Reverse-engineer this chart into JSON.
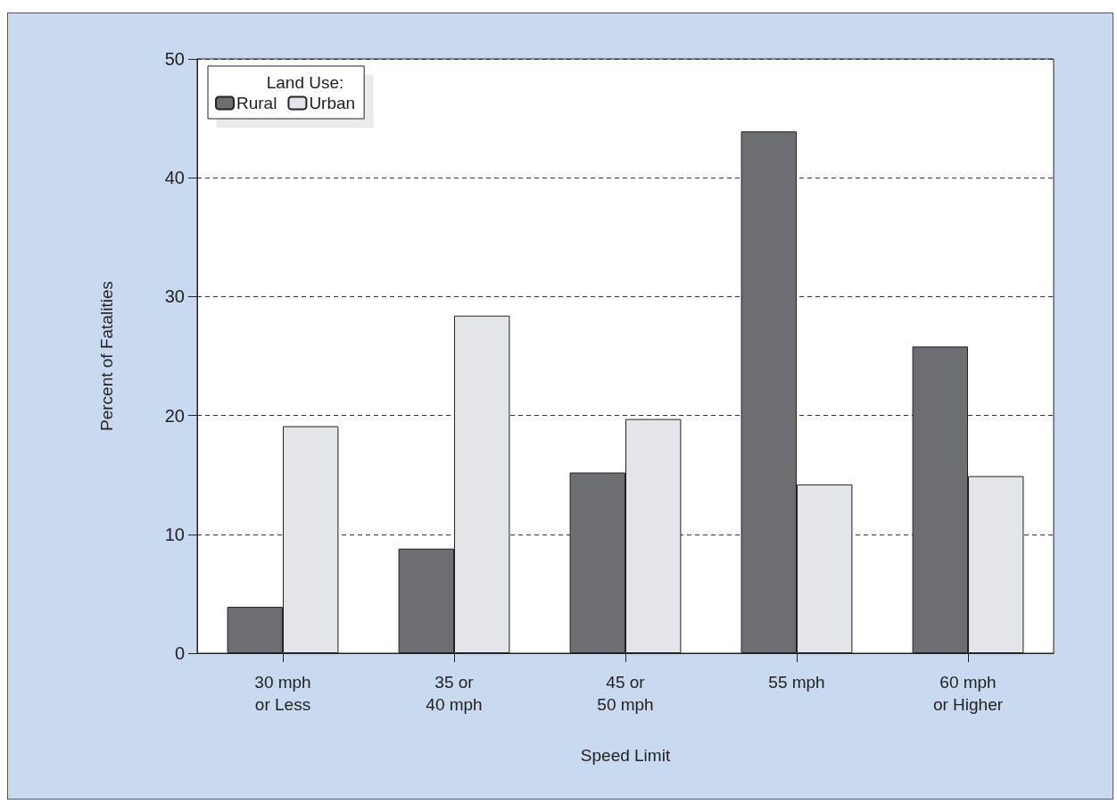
{
  "chart_data": {
    "type": "bar",
    "xlabel": "Speed Limit",
    "ylabel": "Percent of Fatalities",
    "legend_title": "Land Use:",
    "categories": [
      "30 mph\nor Less",
      "35 or\n40 mph",
      "45 or\n50 mph",
      "55 mph",
      "60 mph\nor Higher"
    ],
    "series": [
      {
        "name": "Rural",
        "color": "#6d6e72",
        "values": [
          3.9,
          8.8,
          15.2,
          43.9,
          25.8
        ]
      },
      {
        "name": "Urban",
        "color": "#e4e5e8",
        "values": [
          19.1,
          28.4,
          19.7,
          14.2,
          14.9
        ]
      }
    ],
    "ylim": [
      0,
      50
    ],
    "yticks": [
      0,
      10,
      20,
      30,
      40,
      50
    ],
    "grid": "y",
    "legend": "top left"
  }
}
